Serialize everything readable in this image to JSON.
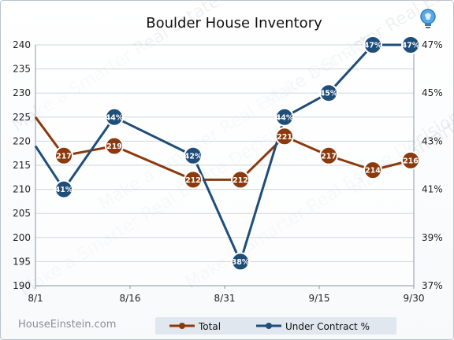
{
  "chart_data": {
    "type": "line",
    "title": "Boulder House Inventory",
    "x_tick_labels": [
      "8/1",
      "8/16",
      "8/31",
      "9/15",
      "9/30"
    ],
    "y_left": {
      "min": 190,
      "max": 240,
      "step": 5,
      "ticks": [
        "190",
        "195",
        "200",
        "205",
        "210",
        "215",
        "220",
        "225",
        "230",
        "235",
        "240"
      ]
    },
    "y_right": {
      "min": 37,
      "max": 47,
      "ticks": [
        "37%",
        "39%",
        "41%",
        "43%",
        "45%",
        "47%"
      ]
    },
    "x_range_days": [
      0,
      60
    ],
    "grid": true,
    "legend_position": "bottom-right",
    "series": [
      {
        "name": "Total",
        "axis": "left",
        "color": "#8b3a0e",
        "points": [
          {
            "x": 0,
            "y": 225,
            "label": ""
          },
          {
            "x": 4.5,
            "y": 217,
            "label": "217"
          },
          {
            "x": 12.5,
            "y": 219,
            "label": "219"
          },
          {
            "x": 25,
            "y": 212,
            "label": "212"
          },
          {
            "x": 32.5,
            "y": 212,
            "label": "212"
          },
          {
            "x": 39.5,
            "y": 221,
            "label": "221"
          },
          {
            "x": 46.5,
            "y": 217,
            "label": "217"
          },
          {
            "x": 53.5,
            "y": 214,
            "label": "214"
          },
          {
            "x": 59.5,
            "y": 216,
            "label": "216"
          }
        ]
      },
      {
        "name": "Under Contract %",
        "axis": "right",
        "color": "#1f4e79",
        "points": [
          {
            "x": 0,
            "y": 42.8,
            "label": ""
          },
          {
            "x": 4.5,
            "y": 41,
            "label": "41%"
          },
          {
            "x": 12.5,
            "y": 44,
            "label": "44%"
          },
          {
            "x": 25,
            "y": 42.4,
            "label": "42%"
          },
          {
            "x": 32.5,
            "y": 38,
            "label": "38%"
          },
          {
            "x": 39.5,
            "y": 44,
            "label": "44%"
          },
          {
            "x": 46.5,
            "y": 45,
            "label": "45%"
          },
          {
            "x": 53.5,
            "y": 47,
            "label": "47%"
          },
          {
            "x": 59.5,
            "y": 47,
            "label": "47%"
          }
        ]
      }
    ]
  },
  "branding": {
    "site": "HouseEinstein.com",
    "watermark": "Make a Smarter Real Estate Decision",
    "logo_icon": "lightbulb-icon"
  },
  "colors": {
    "grid": "#d0d6dc",
    "axis": "#8a96a3",
    "legend_bg": "#e1e7ee"
  }
}
